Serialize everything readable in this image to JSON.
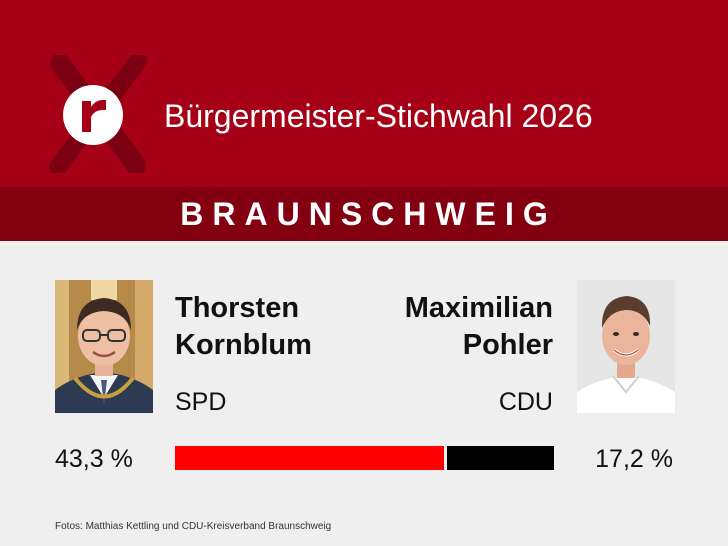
{
  "header": {
    "title": "Bürgermeister-Stichwahl 2026",
    "logo_icon": "r-logo-icon",
    "background_color": "#a50016"
  },
  "city": {
    "name": "BRAUNSCHWEIG",
    "band_color": "#830011"
  },
  "candidates": [
    {
      "first_name": "Thorsten",
      "last_name": "Kornblum",
      "party": "SPD",
      "percent_label": "43,3 %",
      "percent": 43.3,
      "bar_color": "#ff0000",
      "photo_icon": "portrait-photo"
    },
    {
      "first_name": "Maximilian",
      "last_name": "Pohler",
      "party": "CDU",
      "percent_label": "17,2 %",
      "percent": 17.2,
      "bar_color": "#000000",
      "photo_icon": "portrait-photo"
    }
  ],
  "credit": "Fotos: Matthias Kettling und CDU-Kreisverband Braunschweig"
}
